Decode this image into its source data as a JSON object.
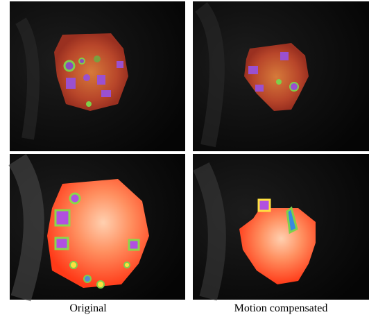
{
  "captions": [
    "Original",
    "Motion compensated"
  ]
}
